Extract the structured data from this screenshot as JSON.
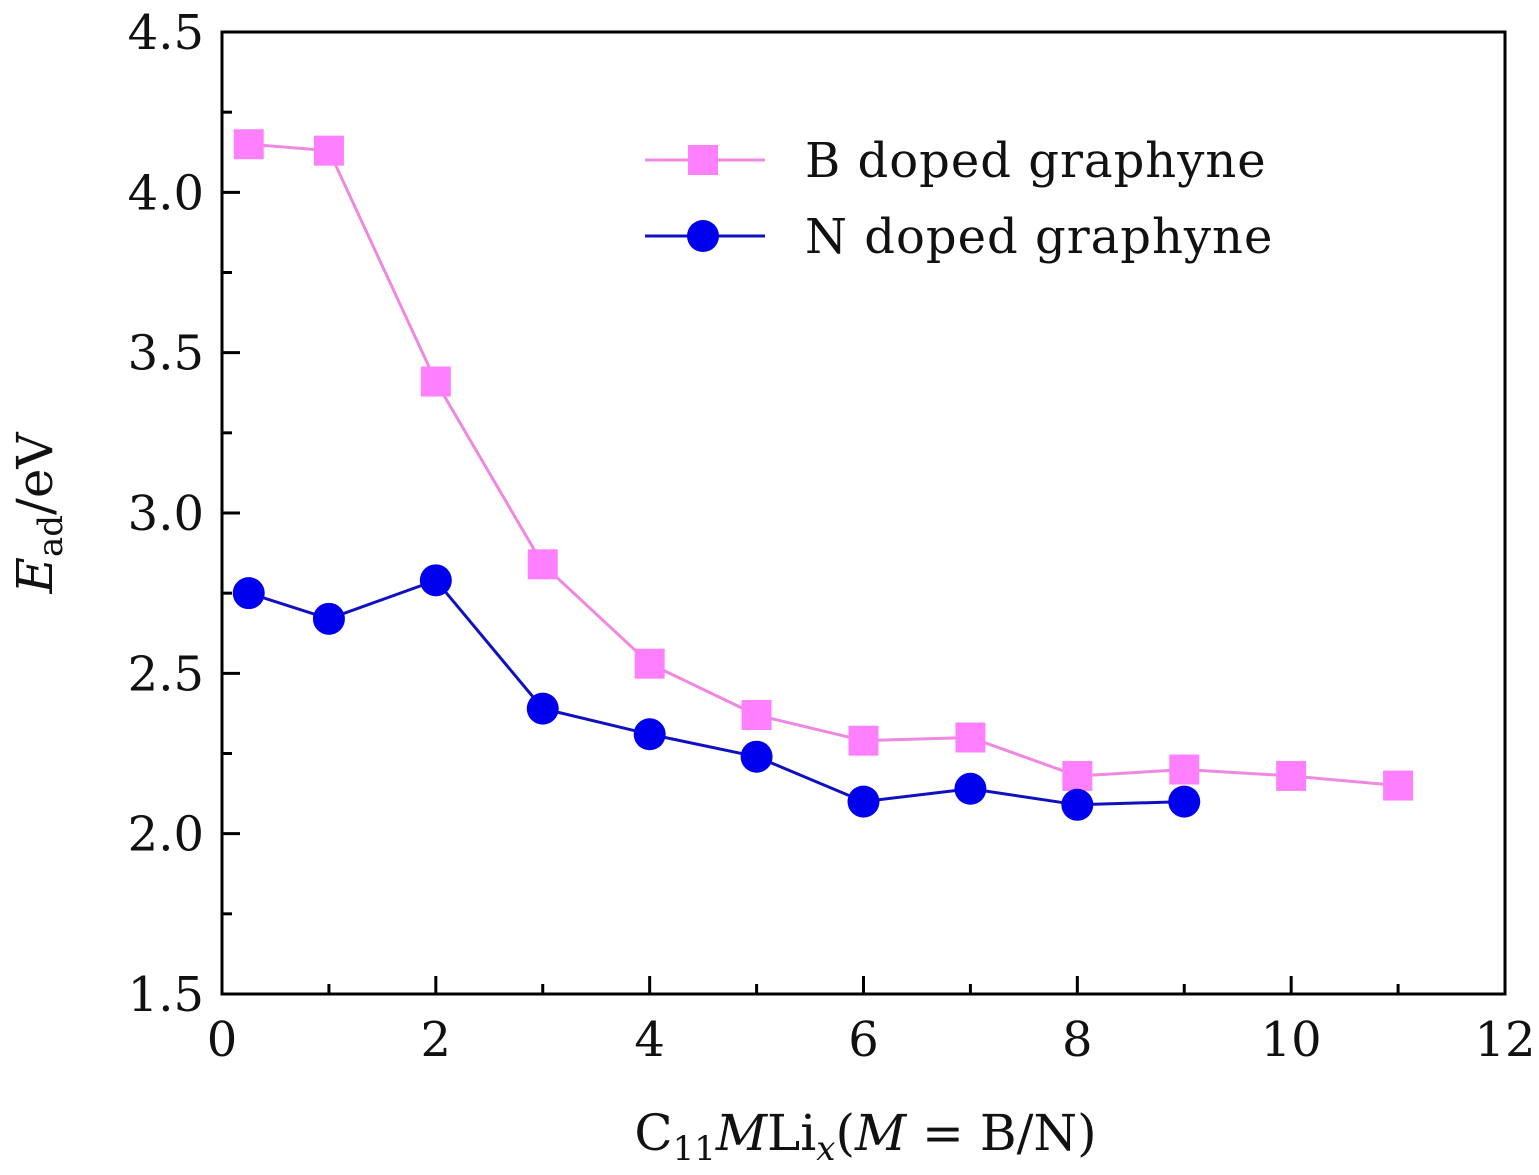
{
  "chart_data": {
    "type": "line",
    "title": "",
    "xlabel": {
      "parts": [
        {
          "text": "C",
          "style": "normal"
        },
        {
          "text": "11",
          "style": "sub"
        },
        {
          "text": "M",
          "style": "italic"
        },
        {
          "text": "Li",
          "style": "normal"
        },
        {
          "text": "x",
          "style": "italic-sub"
        },
        {
          "text": "(",
          "style": "normal"
        },
        {
          "text": "M",
          "style": "italic"
        },
        {
          "text": " = B/N)",
          "style": "normal"
        }
      ]
    },
    "ylabel": {
      "parts": [
        {
          "text": "E",
          "style": "italic"
        },
        {
          "text": "ad",
          "style": "sub"
        },
        {
          "text": "/eV",
          "style": "normal"
        }
      ]
    },
    "xlim": [
      0,
      12
    ],
    "ylim": [
      1.5,
      4.5
    ],
    "x_ticks": [
      "0",
      "2",
      "4",
      "6",
      "8",
      "10",
      "12"
    ],
    "y_ticks": [
      "1.5",
      "2.0",
      "2.5",
      "3.0",
      "3.5",
      "4.0",
      "4.5"
    ],
    "grid": false,
    "legend_position": "top-right",
    "series": [
      {
        "name": "B doped graphyne",
        "color": "#ff80ff",
        "line_color": "#ee88e0",
        "marker": "square",
        "x": [
          0.25,
          1,
          2,
          3,
          4,
          5,
          6,
          7,
          8,
          9,
          10,
          11
        ],
        "y": [
          4.15,
          4.13,
          3.41,
          2.84,
          2.53,
          2.37,
          2.29,
          2.3,
          2.18,
          2.2,
          2.18,
          2.15
        ]
      },
      {
        "name": "N doped graphyne",
        "color": "#0000ee",
        "line_color": "#1010c0",
        "marker": "circle",
        "x": [
          0.25,
          1,
          2,
          3,
          4,
          5,
          6,
          7,
          8,
          9
        ],
        "y": [
          2.75,
          2.67,
          2.79,
          2.39,
          2.31,
          2.24,
          2.1,
          2.14,
          2.09,
          2.1
        ]
      }
    ]
  }
}
